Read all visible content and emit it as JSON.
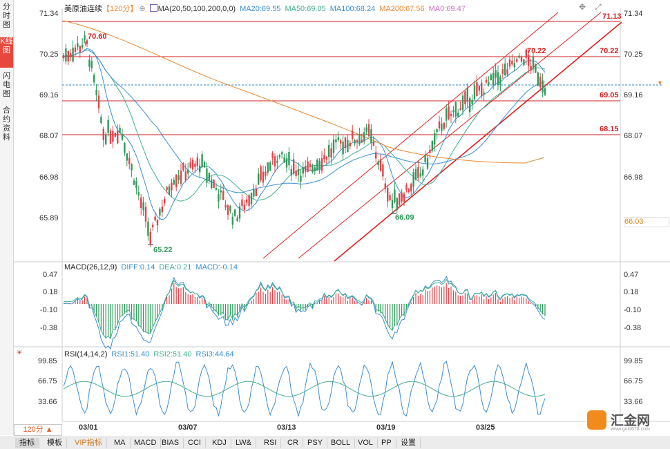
{
  "sidebar": {
    "tabs": [
      {
        "label": "分时图",
        "active": false
      },
      {
        "label": "K线图",
        "active": true
      },
      {
        "label": "闪电图",
        "active": false
      },
      {
        "label": "合约资料",
        "active": false
      }
    ]
  },
  "main": {
    "instrument": "美原油连续",
    "period_tag": "【120分】",
    "ma_title": "MA(20,50,100,200,0,0)",
    "ma_values": [
      {
        "label": "MA20:69.55",
        "color": "#3a8fd0"
      },
      {
        "label": "MA50:69.05",
        "color": "#3fae8f"
      },
      {
        "label": "MA100:68.24",
        "color": "#3a8fd0"
      },
      {
        "label": "MA200:67.56",
        "color": "#e8892f"
      },
      {
        "label": "MA0:69.47",
        "color": "#d270c4"
      }
    ],
    "y_ticks": [
      "71.34",
      "70.25",
      "69.16",
      "68.07",
      "66.98",
      "65.89"
    ],
    "y_tick_values": [
      71.34,
      70.25,
      69.16,
      68.07,
      66.98,
      65.89
    ],
    "current_price_label": "66.03",
    "annotations": [
      {
        "text": "70.60",
        "price": 70.6,
        "color": "#d21e1e"
      },
      {
        "text": "65.22",
        "price": 65.22,
        "color": "#2f9a5b"
      },
      {
        "text": "66.09",
        "price": 66.09,
        "color": "#2f9a5b"
      },
      {
        "text": "70.22",
        "price": 70.22,
        "color": "#d21e1e"
      }
    ],
    "hlines": [
      {
        "text": "71.13",
        "price": 71.13
      },
      {
        "text": "70.22",
        "price": 70.22
      },
      {
        "text": "69.05",
        "price": 69.05
      },
      {
        "text": "68.15",
        "price": 68.15
      }
    ]
  },
  "macd": {
    "title": "MACD(26,12,9)",
    "diff": "DIFF:0.14",
    "dea": "DEA:0.21",
    "macd": "MACD:-0.14",
    "y_ticks": [
      "0.47",
      "0.18",
      "-0.10",
      "-0.38"
    ]
  },
  "rsi": {
    "title": "RSI(14,14,2)",
    "rsi1": "RSI1:51.40",
    "rsi2": "RSI2:51.40",
    "rsi3": "RSI3:44.64",
    "y_ticks": [
      "99.85",
      "66.75",
      "33.66"
    ]
  },
  "x_axis": [
    "03/01",
    "03/07",
    "03/13",
    "03/19",
    "03/25"
  ],
  "period_selector": "120分 ▲",
  "toolbar": [
    "指标",
    "模板",
    "VIP指标",
    "MA",
    "MACD",
    "BIAS",
    "CCI",
    "KDJ",
    "LW&",
    "RSI",
    "CR",
    "PSY",
    "BOLL",
    "VOL",
    "PP",
    "设置"
  ],
  "logo": {
    "text": "汇金网",
    "url": "www.gold678.com"
  },
  "colors": {
    "up": "#e2424a",
    "down": "#2f9a5b",
    "resistance": "#d21e1e",
    "channel": "#e02020",
    "dashed": "#2c89c4"
  }
}
